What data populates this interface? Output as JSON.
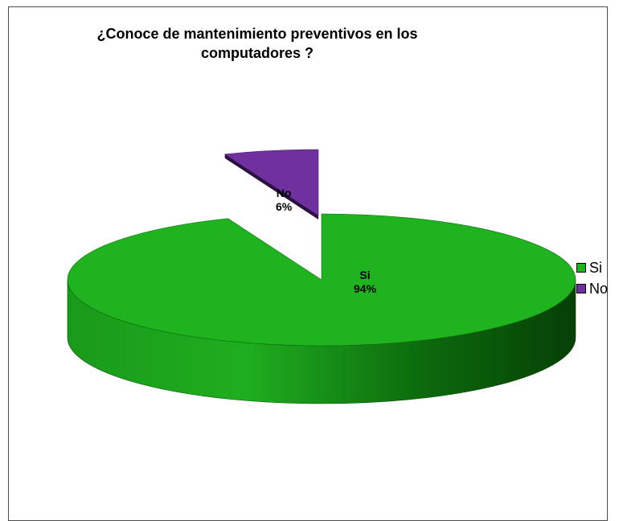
{
  "chart_data": {
    "type": "pie",
    "title": "¿Conoce de mantenimiento preventivos en los computadores ?",
    "title_lines": [
      "¿Conoce de mantenimiento preventivos en los",
      "computadores ?"
    ],
    "three_d": true,
    "exploded_slice": "No",
    "legend_position": "right",
    "slices": [
      {
        "label": "Si",
        "value": 94,
        "percent_label": "94%",
        "color": "#1fb41f"
      },
      {
        "label": "No",
        "value": 6,
        "percent_label": "6%",
        "color": "#7030a0"
      }
    ]
  }
}
